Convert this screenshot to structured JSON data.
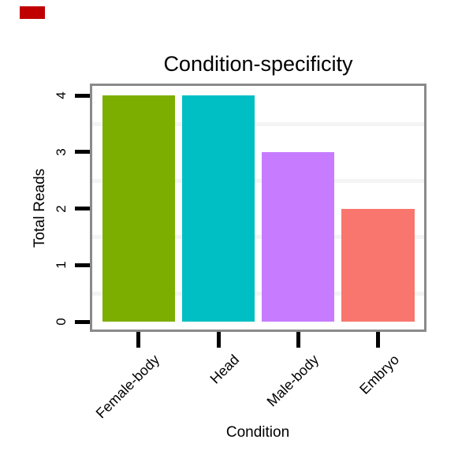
{
  "chart_data": {
    "type": "bar",
    "title": "Condition-specificity",
    "xlabel": "Condition",
    "ylabel": "Total Reads",
    "categories": [
      "Female-body",
      "Head",
      "Male-body",
      "Embryo"
    ],
    "values": [
      4,
      4,
      3,
      2
    ],
    "bar_colors": [
      "#7CAE00",
      "#00BFC4",
      "#C77CFF",
      "#F8766D"
    ],
    "ylim": [
      0,
      4
    ],
    "yticks": [
      "0",
      "1",
      "2",
      "3",
      "4"
    ],
    "minor_gridlines": [
      0.5,
      1.5,
      2.5,
      3.5
    ],
    "grid": "faint horizontal minor gridlines on white panel",
    "legend": "none",
    "x_label_rotation_deg": 45,
    "y_label_rotation_deg": 90
  },
  "styles": {
    "background": "#ffffff",
    "text_color": "#000000",
    "panel_border_color": "#8a8a8a",
    "gridline_color": "#f4f4f4",
    "tick_color": "#000000",
    "corner_marker_color": "#c00000"
  }
}
